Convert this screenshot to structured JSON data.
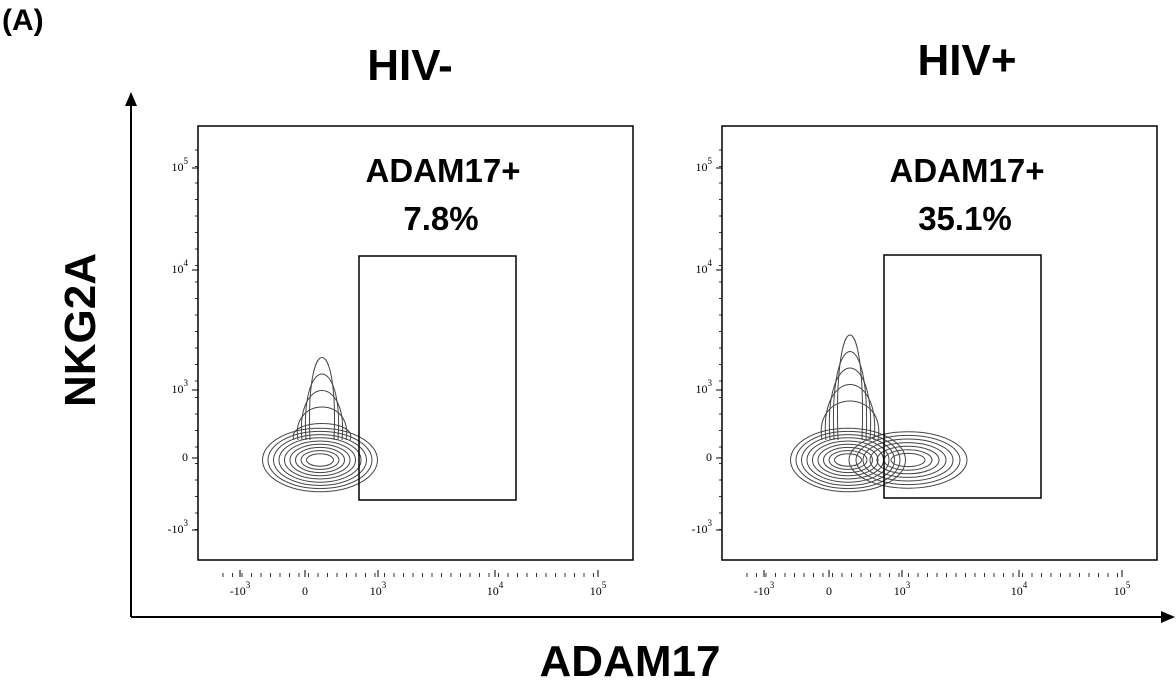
{
  "figure_label": "(A)",
  "y_axis_title": "NKG2A",
  "x_axis_title": "ADAM17",
  "panels": [
    {
      "title": "HIV-",
      "gate_label": "ADAM17+",
      "gate_percent": "7.8%"
    },
    {
      "title": "HIV+",
      "gate_label": "ADAM17+",
      "gate_percent": "35.1%"
    }
  ],
  "y_tick_labels": [
    {
      "base": "10",
      "exp": "5"
    },
    {
      "base": "10",
      "exp": "4"
    },
    {
      "base": "10",
      "exp": "3"
    },
    "0",
    {
      "base": "-10",
      "exp": "3"
    }
  ],
  "x_tick_labels": [
    {
      "base": "-10",
      "exp": "3"
    },
    "0",
    {
      "base": "10",
      "exp": "3"
    },
    {
      "base": "10",
      "exp": "4"
    },
    {
      "base": "10",
      "exp": "5"
    }
  ]
}
